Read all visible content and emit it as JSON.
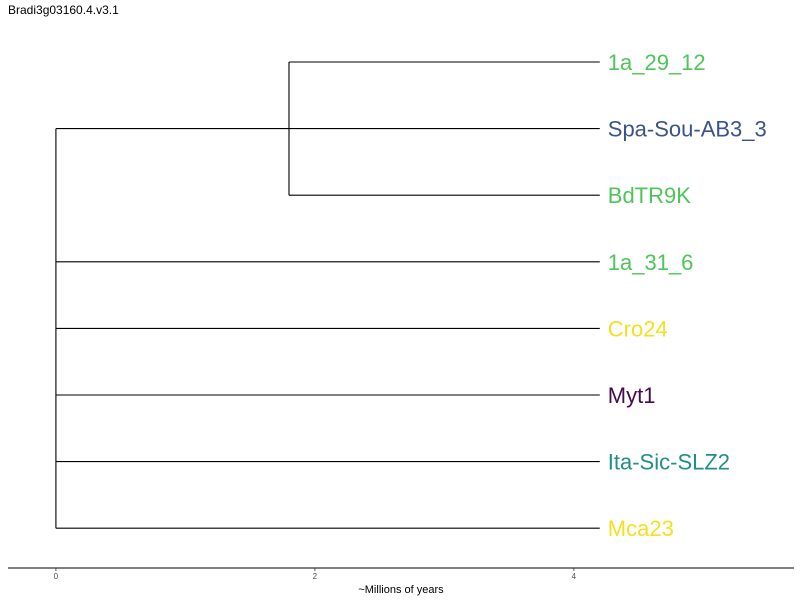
{
  "title": "Bradi3g03160.4.v3.1",
  "tree": {
    "tips": [
      {
        "label": "1a_29_12",
        "color": "#4ec55a"
      },
      {
        "label": "Spa-Sou-AB3_3",
        "color": "#3a5389"
      },
      {
        "label": "BdTR9K",
        "color": "#4ec55a"
      },
      {
        "label": "1a_31_6",
        "color": "#4ec55a"
      },
      {
        "label": "Cro24",
        "color": "#f4e01f"
      },
      {
        "label": "Myt1",
        "color": "#430a4f"
      },
      {
        "label": "Ita-Sic-SLZ2",
        "color": "#1f8f88"
      },
      {
        "label": "Mca23",
        "color": "#f4e01f"
      }
    ],
    "tip_age": 4.2,
    "clade_node_age": 1.8,
    "clade_members": [
      "1a_29_12",
      "Spa-Sou-AB3_3",
      "BdTR9K"
    ]
  },
  "axis": {
    "label": "~Millions of years",
    "ticks": [
      {
        "value": 0,
        "label": "0"
      },
      {
        "value": 2,
        "label": "2"
      },
      {
        "value": 4,
        "label": "4"
      }
    ],
    "range": [
      -0.37,
      5.7
    ]
  },
  "colors": {
    "branch": "#000000",
    "axis": "#000000"
  }
}
